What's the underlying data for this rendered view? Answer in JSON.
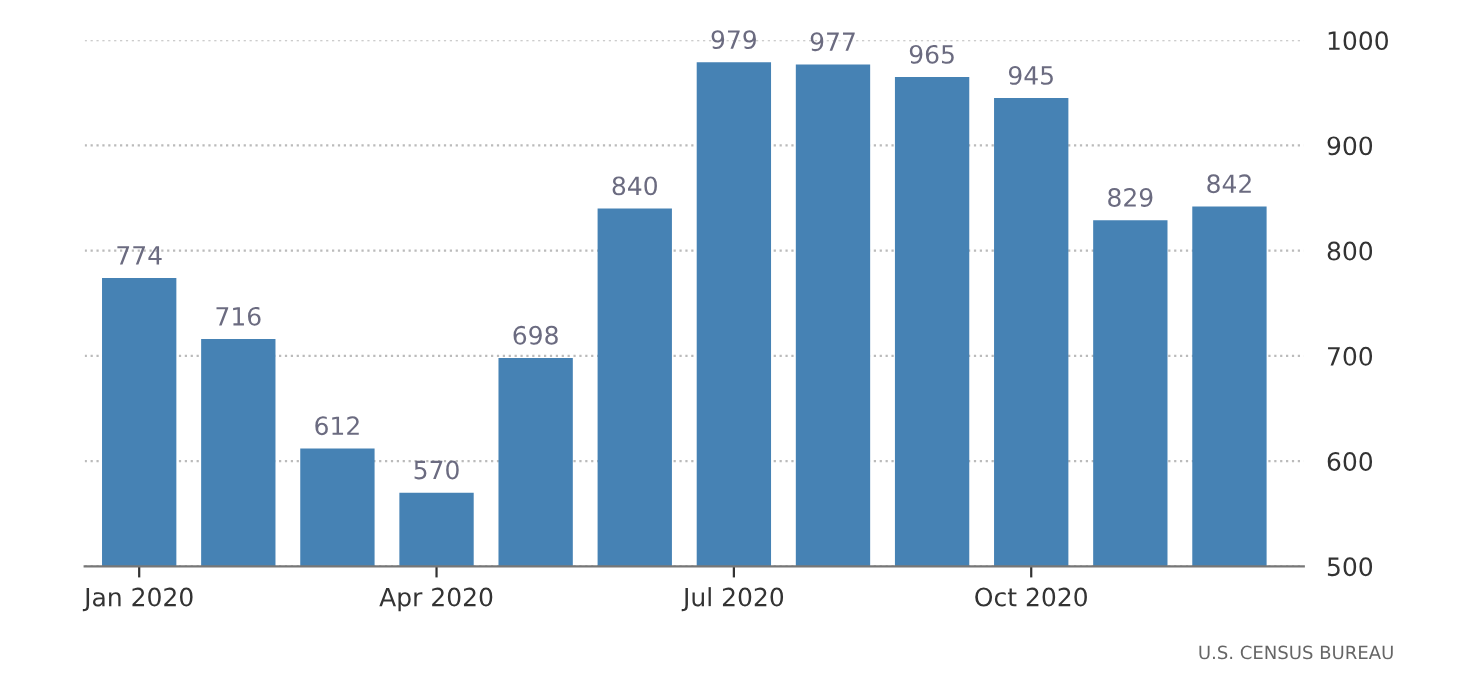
{
  "chart_data": {
    "type": "bar",
    "categories": [
      "Jan 2020",
      null,
      null,
      "Apr 2020",
      null,
      null,
      "Jul 2020",
      null,
      null,
      "Oct 2020",
      null,
      null
    ],
    "values": [
      774,
      716,
      612,
      570,
      698,
      840,
      979,
      977,
      965,
      945,
      829,
      842
    ],
    "color": "#4682b4",
    "ylim": [
      500,
      1000
    ],
    "yticks": [
      500,
      600,
      700,
      800,
      900,
      1000
    ],
    "grid": "y",
    "data_labels": true,
    "annotations": [
      "U.S. CENSUS BUREAU"
    ]
  }
}
